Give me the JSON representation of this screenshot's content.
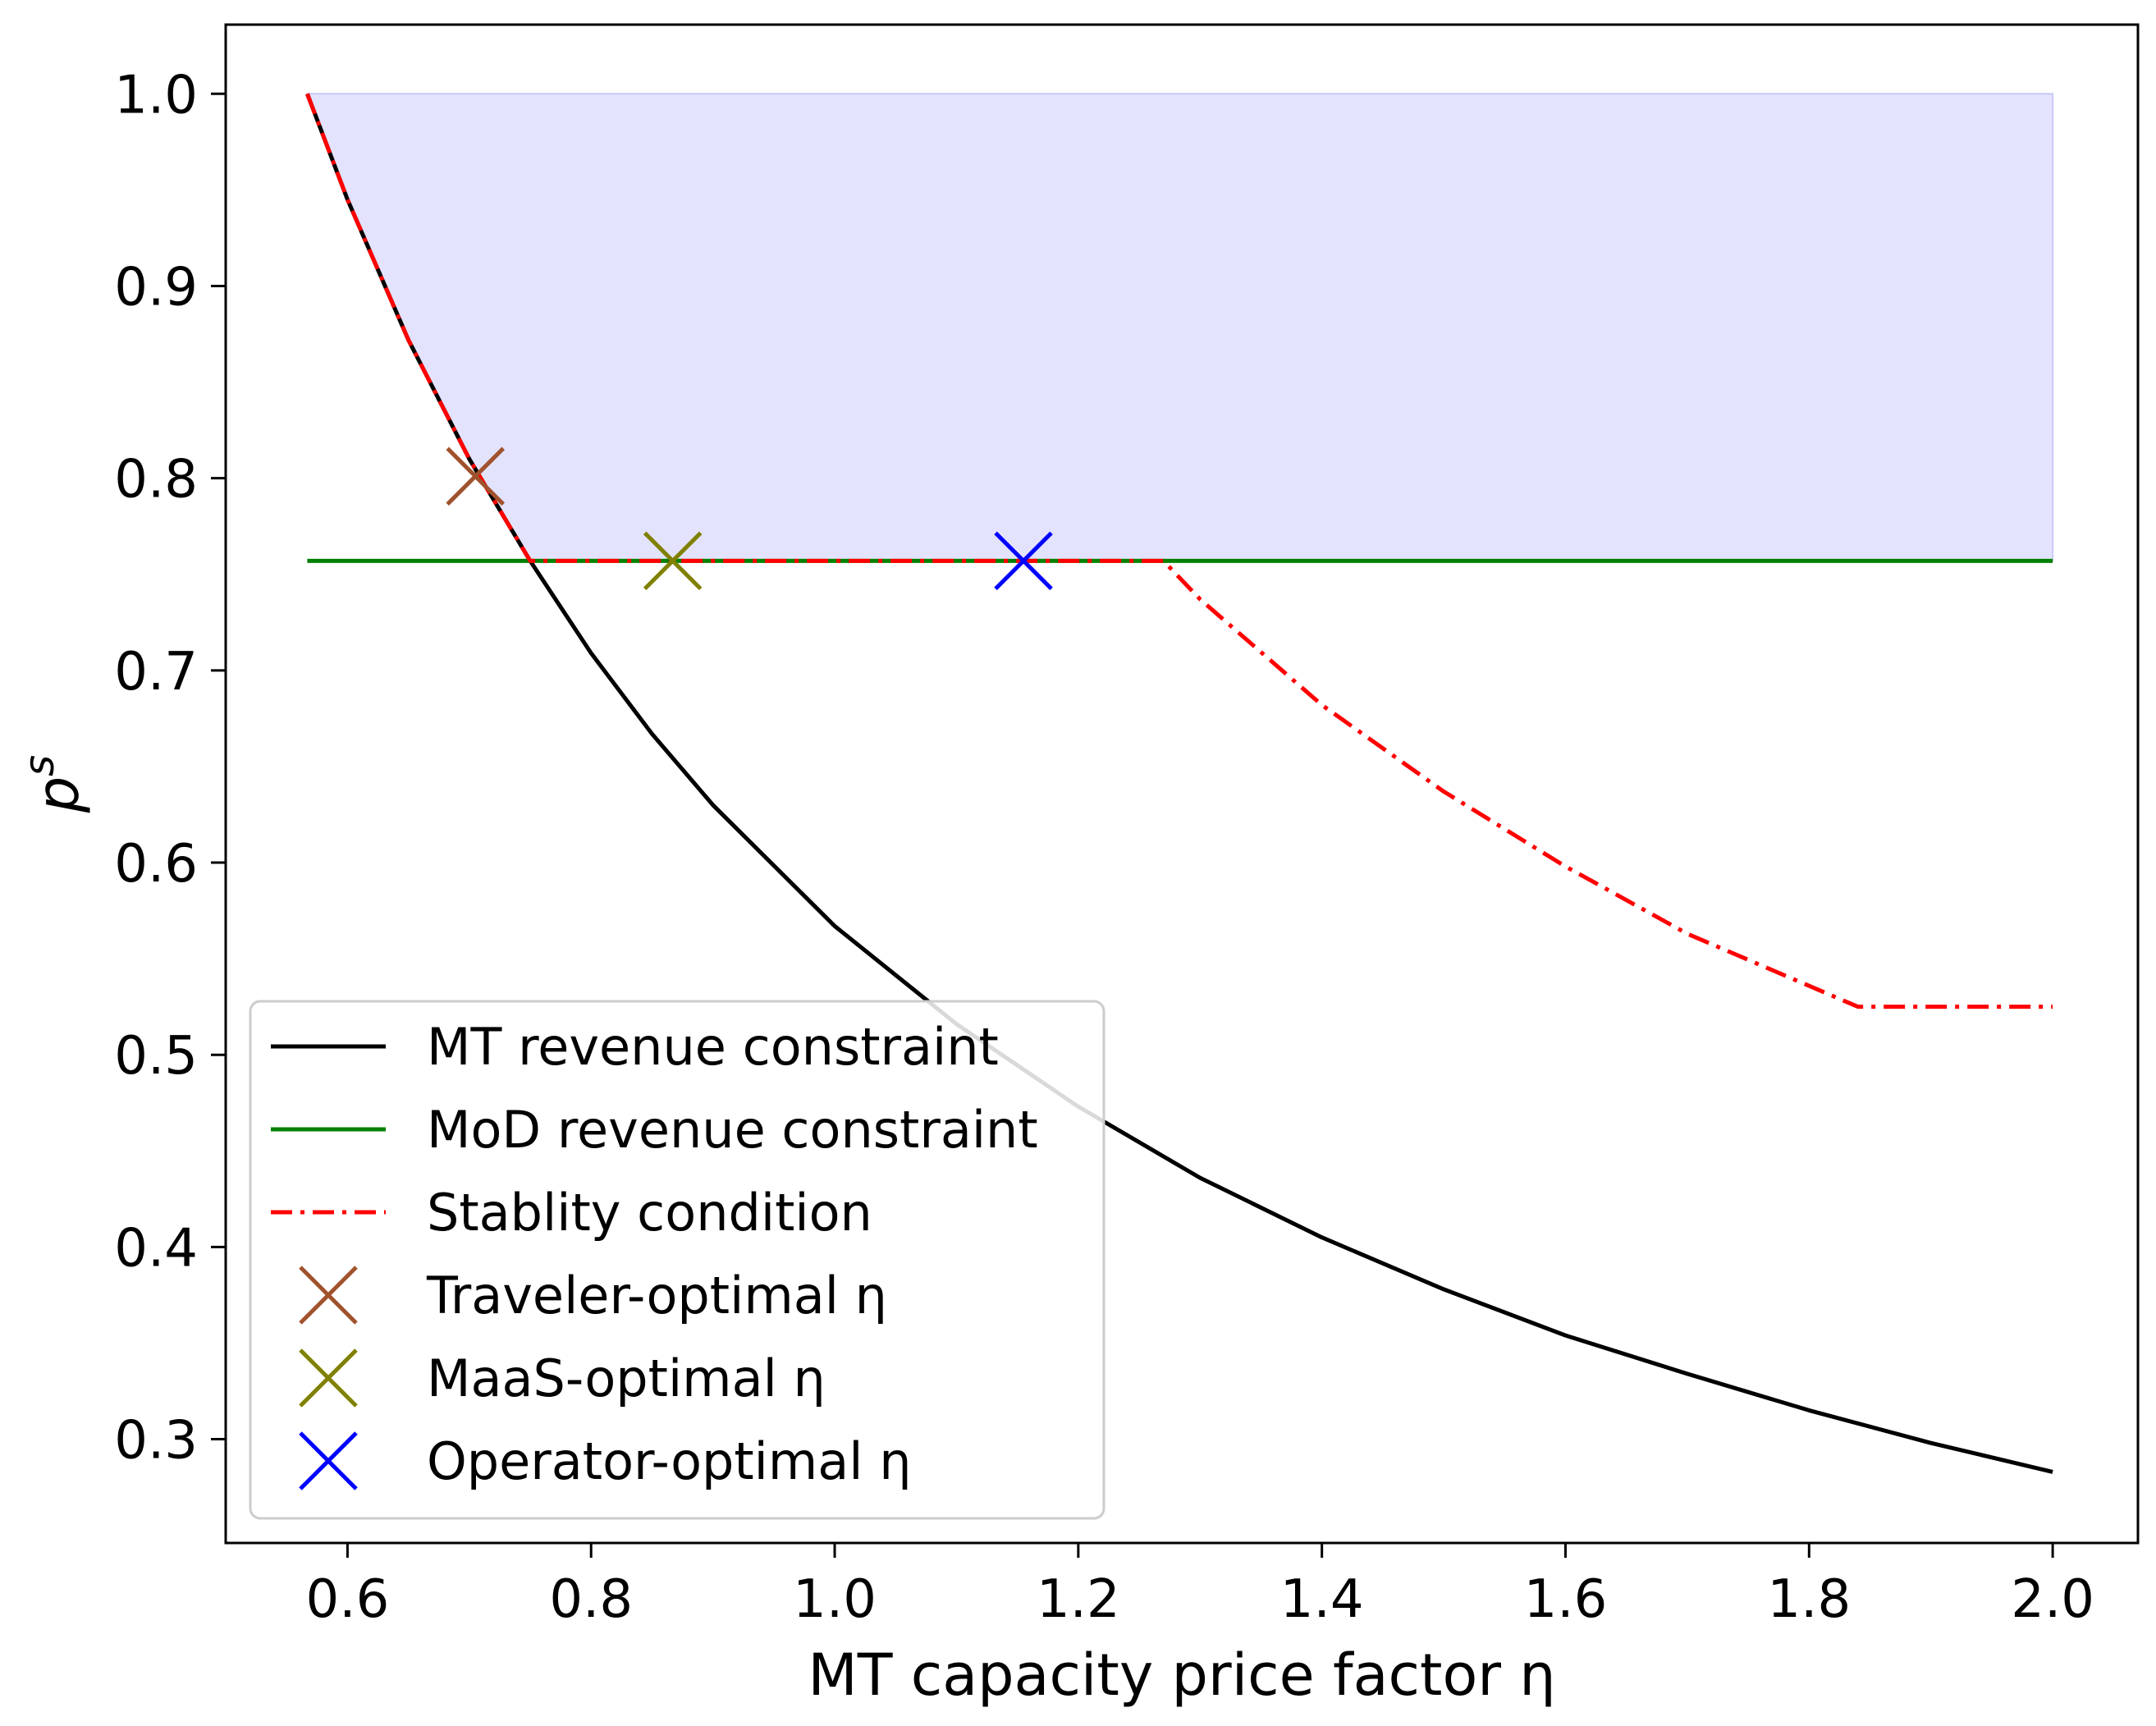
{
  "chart_data": {
    "type": "line",
    "xlabel": "MT capacity price factor η",
    "ylabel": "p^s",
    "ylabel_base": "p",
    "ylabel_sup": "s",
    "xlim": [
      0.5,
      2.07
    ],
    "ylim": [
      0.246,
      1.036
    ],
    "x_ticks": [
      0.6,
      0.8,
      1.0,
      1.2,
      1.4,
      1.6,
      1.8,
      2.0
    ],
    "x_tick_labels": [
      "0.6",
      "0.8",
      "1.0",
      "1.2",
      "1.4",
      "1.6",
      "1.8",
      "2.0"
    ],
    "y_ticks": [
      0.3,
      0.4,
      0.5,
      0.6,
      0.7,
      0.8,
      0.9,
      1.0
    ],
    "y_tick_labels": [
      "0.3",
      "0.4",
      "0.5",
      "0.6",
      "0.7",
      "0.8",
      "0.9",
      "1.0"
    ],
    "grid": false,
    "legend_position": "lower-left",
    "feasible_region": {
      "color": "#e3e3fd",
      "x": [
        0.567,
        0.6,
        0.65,
        0.7,
        0.75,
        1.27,
        2.0
      ],
      "y_lower": [
        1.0,
        0.945,
        0.872,
        0.81,
        0.757,
        0.757,
        0.757
      ],
      "y_upper": 1.0
    },
    "series": [
      {
        "name": "MT revenue constraint",
        "style": "solid",
        "color": "#000000",
        "x": [
          0.567,
          0.6,
          0.65,
          0.7,
          0.75,
          0.8,
          0.85,
          0.9,
          1.0,
          1.1,
          1.2,
          1.3,
          1.4,
          1.5,
          1.6,
          1.7,
          1.8,
          1.9,
          2.0
        ],
        "y": [
          1.0,
          0.945,
          0.872,
          0.81,
          0.757,
          0.709,
          0.667,
          0.63,
          0.567,
          0.516,
          0.473,
          0.436,
          0.405,
          0.378,
          0.354,
          0.334,
          0.315,
          0.298,
          0.283
        ]
      },
      {
        "name": "MoD revenue constraint",
        "style": "solid",
        "color": "#008000",
        "x": [
          0.567,
          2.0
        ],
        "y": [
          0.757,
          0.757
        ]
      },
      {
        "name": "Stablity condition",
        "style": "dashdot",
        "color": "#ff0000",
        "x": [
          0.567,
          0.6,
          0.65,
          0.7,
          0.75,
          1.27,
          1.3,
          1.4,
          1.5,
          1.6,
          1.7,
          1.84,
          2.0
        ],
        "y": [
          1.0,
          0.945,
          0.872,
          0.81,
          0.757,
          0.757,
          0.737,
          0.682,
          0.637,
          0.598,
          0.563,
          0.525,
          0.525
        ]
      }
    ],
    "markers": [
      {
        "name": "Traveler-optimal η",
        "color": "#a0522d",
        "x": 0.705,
        "y": 0.801
      },
      {
        "name": "MaaS-optimal η",
        "color": "#808000",
        "x": 0.867,
        "y": 0.757
      },
      {
        "name": "Operator-optimal η",
        "color": "#0000ff",
        "x": 1.155,
        "y": 0.757
      }
    ]
  }
}
